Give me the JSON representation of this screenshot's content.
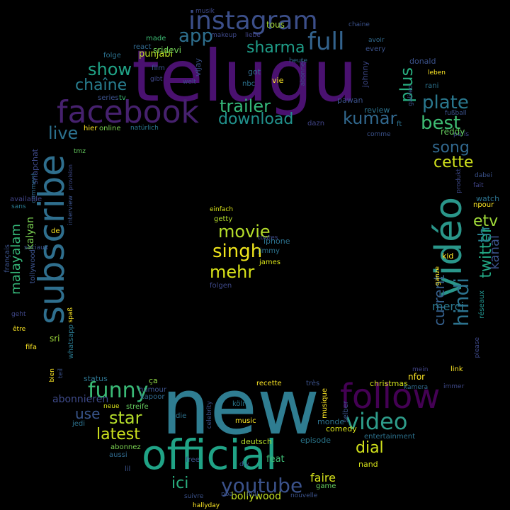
{
  "words": [
    "telugu",
    "new",
    "official",
    "subscribe",
    "facebook",
    "vidéo",
    "follow",
    "instagram",
    "full",
    "funny",
    "video",
    "youtube",
    "hindi",
    "singh",
    "mehr",
    "movie",
    "trailer",
    "download",
    "best",
    "kumar",
    "plate",
    "plus",
    "sharma",
    "app",
    "show",
    "chaîne",
    "live",
    "song",
    "cette",
    "etv",
    "twitter",
    "th",
    "kanal",
    "current",
    "merci",
    "star",
    "latest",
    "use",
    "dial",
    "ici",
    "bollywood",
    "faire",
    "malayalam",
    "kalyan",
    "sri",
    "abonnieren",
    "punjabi",
    "sridevi",
    "vijay",
    "tous",
    "made",
    "react",
    "folge",
    "film",
    "gibt",
    "series",
    "tv",
    "hier",
    "online",
    "natürlich",
    "tmz",
    "snapchat",
    "comment",
    "available",
    "sans",
    "de",
    "sociaux",
    "français",
    "tollywood",
    "geht",
    "être",
    "fifa",
    "whatsapp",
    "spaß",
    "interview",
    "provision",
    "bien",
    "teil",
    "status",
    "ça",
    "humour",
    "kapoor",
    "neue",
    "streife",
    "jedi",
    "abonnez",
    "aussi",
    "lil",
    "free",
    "die",
    "celebrity",
    "music",
    "köln",
    "recette",
    "très",
    "musique",
    "selber",
    "monde",
    "comedy",
    "episode",
    "deutsch",
    "diy",
    "feat",
    "nand",
    "game",
    "suivre",
    "hallyday",
    "nouvelle",
    "christmas",
    "entertainment",
    "kamera",
    "immer",
    "link",
    "nfor",
    "please",
    "mein",
    "réseaux",
    "kid",
    "ganze",
    "watch",
    "npour",
    "fait",
    "dabei",
    "produkt",
    "paris",
    "fußball",
    "reddy",
    "comme",
    "ft",
    "dazn",
    "review",
    "pawan",
    "leben",
    "galileo",
    "rani",
    "donald",
    "johnny",
    "avoir",
    "every",
    "chaine",
    "musik",
    "nba",
    "mal",
    "liebe",
    "makeup",
    "got",
    "nbc",
    "vie",
    "heute",
    "welt",
    "abonner",
    "einfach",
    "getty",
    "iphone",
    "toutes",
    "jimmy",
    "james",
    "folgen"
  ]
}
